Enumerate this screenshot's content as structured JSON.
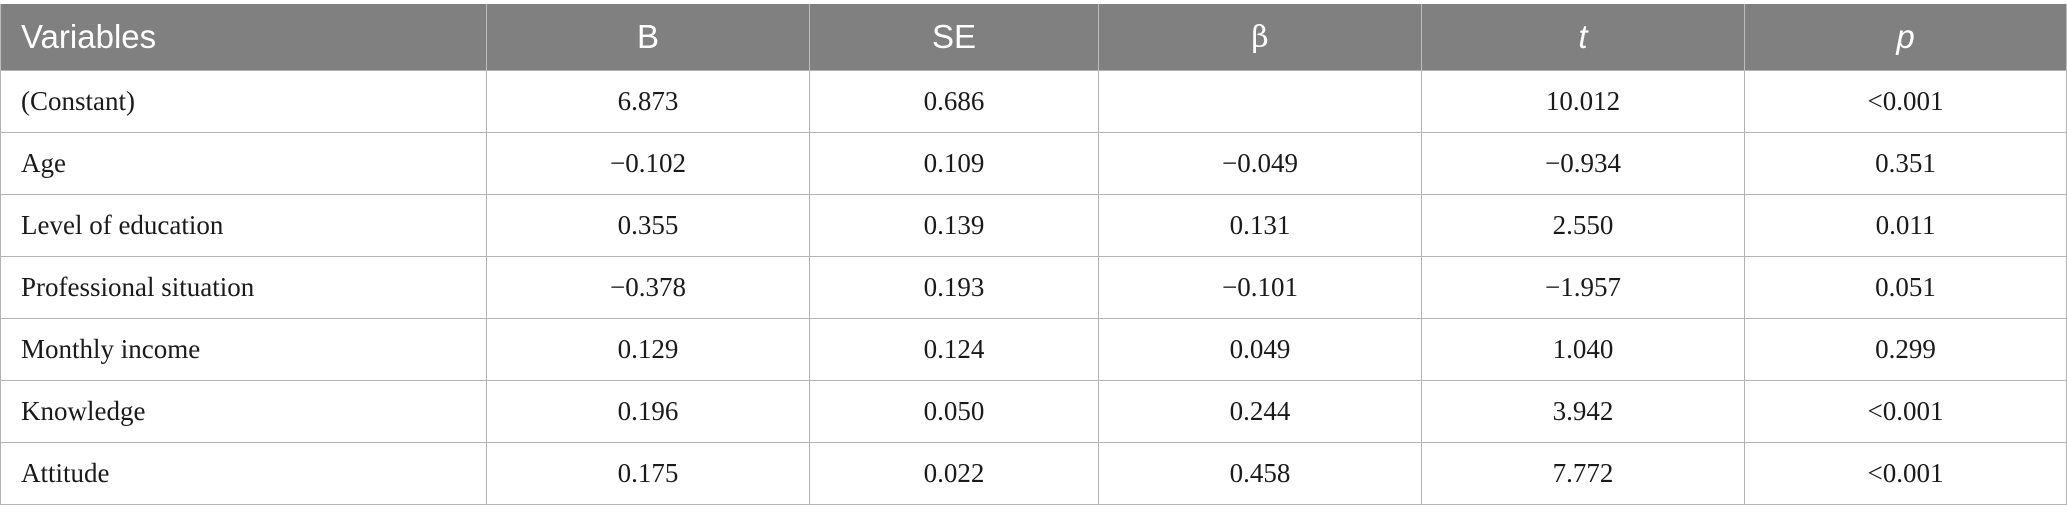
{
  "table": {
    "headers": [
      "Variables",
      "B",
      "SE",
      "β",
      "t",
      "p"
    ],
    "rows": [
      [
        "(Constant)",
        "6.873",
        "0.686",
        "",
        "10.012",
        "<0.001"
      ],
      [
        "Age",
        "−0.102",
        "0.109",
        "−0.049",
        "−0.934",
        "0.351"
      ],
      [
        "Level of education",
        "0.355",
        "0.139",
        "0.131",
        "2.550",
        "0.011"
      ],
      [
        "Professional situation",
        "−0.378",
        "0.193",
        "−0.101",
        "−1.957",
        "0.051"
      ],
      [
        "Monthly income",
        "0.129",
        "0.124",
        "0.049",
        "1.040",
        "0.299"
      ],
      [
        "Knowledge",
        "0.196",
        "0.050",
        "0.244",
        "3.942",
        "<0.001"
      ],
      [
        "Attitude",
        "0.175",
        "0.022",
        "0.458",
        "7.772",
        "<0.001"
      ]
    ]
  },
  "colors": {
    "header_bg": "#808080",
    "header_text": "#ffffff",
    "grid": "#b3b3b3"
  }
}
